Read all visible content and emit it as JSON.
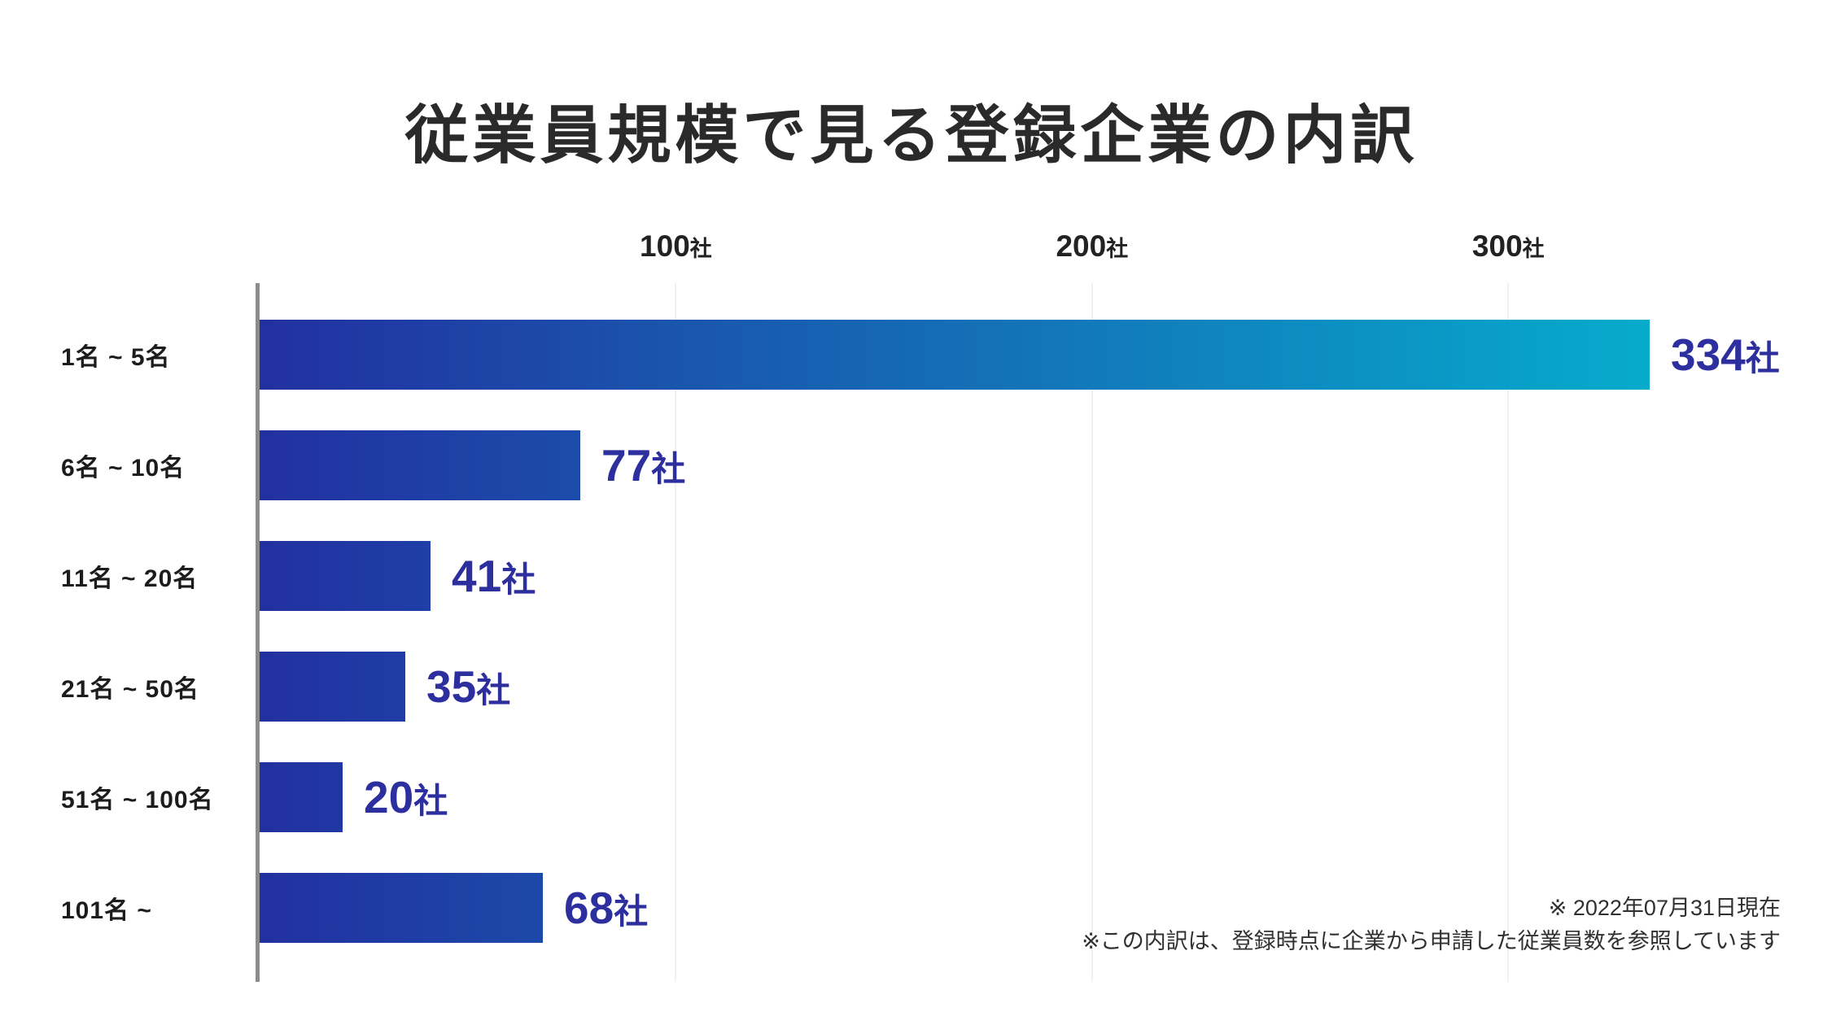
{
  "title": "従業員規模で見る登録企業の内訳",
  "chart_data": {
    "type": "bar",
    "orientation": "horizontal",
    "title": "従業員規模で見る登録企業の内訳",
    "categories": [
      "1名 ~ 5名",
      "6名 ~ 10名",
      "11名 ~ 20名",
      "21名 ~ 50名",
      "51名 ~ 100名",
      "101名 ~"
    ],
    "values": [
      334,
      77,
      41,
      35,
      20,
      68
    ],
    "unit": "社",
    "value_labels": [
      "334社",
      "77社",
      "41社",
      "35社",
      "20社",
      "68社"
    ],
    "x_ticks": [
      100,
      200,
      300
    ],
    "x_tick_labels": [
      "100社",
      "200社",
      "300社"
    ],
    "xlim": [
      0,
      350
    ],
    "grid": "vertical-light-gray",
    "legend": "none"
  },
  "footnotes": {
    "line1": "※ 2022年07月31日現在",
    "line2": "※この内訳は、登録時点に企業から申請した従業員数を参照しています"
  },
  "colors": {
    "background": "#FFFFFF",
    "bar_gradient_start": "#2230A0",
    "bar_gradient_end": "#05B1CE",
    "value_label": "#2E2F9E",
    "axis_line": "#8C8C8C",
    "gridline": "#F1F1F1",
    "title_text": "#2A2A2A",
    "category_text": "#1C1C1C",
    "footnote_text": "#303030"
  }
}
